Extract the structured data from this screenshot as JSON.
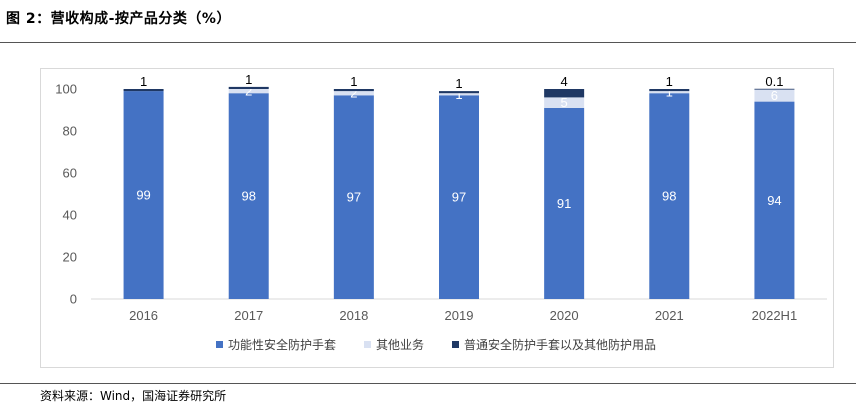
{
  "header": {
    "title": "图 2：营收构成-按产品分类（%）"
  },
  "footer": {
    "source": "资料来源：Wind，国海证券研究所"
  },
  "chart_data": {
    "type": "bar",
    "stacked": true,
    "categories": [
      "2016",
      "2017",
      "2018",
      "2019",
      "2020",
      "2021",
      "2022H1"
    ],
    "series": [
      {
        "name": "功能性安全防护手套",
        "color": "#4472c4",
        "labelColor": "#ffffff",
        "values": [
          99,
          98,
          97,
          97,
          91,
          98,
          94
        ],
        "labels": [
          "99",
          "98",
          "97",
          "97",
          "91",
          "98",
          "94"
        ]
      },
      {
        "name": "其他业务",
        "color": "#d9e1f2",
        "labelColor": "#ffffff",
        "values": [
          0,
          2,
          2,
          1,
          5,
          1,
          6
        ],
        "labels": [
          "",
          "2",
          "2",
          "1",
          "5",
          "1",
          "6"
        ]
      },
      {
        "name": "普通安全防护手套以及其他防护用品",
        "color": "#1f3864",
        "labelColor": "#000000",
        "values": [
          1,
          1,
          1,
          1,
          4,
          1,
          0.1
        ],
        "labels": [
          "1",
          "1",
          "1",
          "1",
          "4",
          "1",
          "0.1"
        ]
      }
    ],
    "ylim": [
      0,
      100
    ],
    "yticks": [
      0,
      20,
      40,
      60,
      80,
      100
    ],
    "grid": false,
    "legend": "bottom",
    "xlabel": "",
    "ylabel": ""
  }
}
